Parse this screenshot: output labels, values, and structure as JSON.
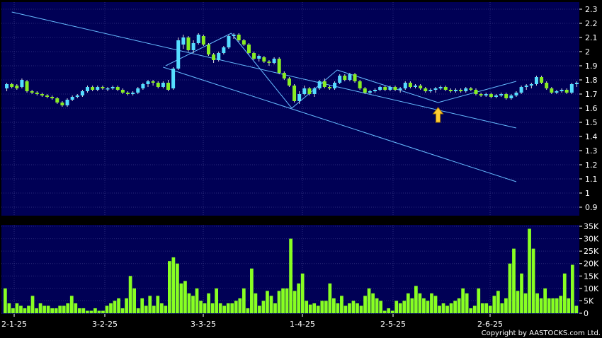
{
  "credit": "Copyright by AASTOCKS.com Ltd.",
  "colors": {
    "background": "#000000",
    "plot": "#000055",
    "grid": "#2a2a7a",
    "up_candle": "#55ddff",
    "down_candle": "#88ee22",
    "volume_bar": "#88ff22",
    "trendline": "#66bbff",
    "text": "#ffffff",
    "arrow": "#ffcc33"
  },
  "chart_data": [
    {
      "type": "candlestick",
      "title": "",
      "ylim": [
        0.85,
        2.35
      ],
      "y_ticks": [
        "2.3",
        "2.2",
        "2.1",
        "2",
        "1.9",
        "1.8",
        "1.7",
        "1.6",
        "1.5",
        "1.4",
        "1.3",
        "1.2",
        "1.1",
        "1",
        "0.9"
      ],
      "grid": true,
      "candles": [
        [
          1.74,
          1.78,
          1.72,
          1.77
        ],
        [
          1.77,
          1.78,
          1.74,
          1.75
        ],
        [
          1.76,
          1.77,
          1.73,
          1.74
        ],
        [
          1.75,
          1.81,
          1.74,
          1.8
        ],
        [
          1.79,
          1.8,
          1.71,
          1.72
        ],
        [
          1.72,
          1.73,
          1.7,
          1.71
        ],
        [
          1.71,
          1.72,
          1.69,
          1.7
        ],
        [
          1.7,
          1.71,
          1.68,
          1.69
        ],
        [
          1.69,
          1.7,
          1.67,
          1.68
        ],
        [
          1.68,
          1.69,
          1.66,
          1.67
        ],
        [
          1.67,
          1.68,
          1.63,
          1.64
        ],
        [
          1.64,
          1.65,
          1.61,
          1.62
        ],
        [
          1.62,
          1.67,
          1.61,
          1.66
        ],
        [
          1.66,
          1.69,
          1.65,
          1.68
        ],
        [
          1.68,
          1.7,
          1.67,
          1.69
        ],
        [
          1.69,
          1.73,
          1.68,
          1.72
        ],
        [
          1.72,
          1.76,
          1.71,
          1.75
        ],
        [
          1.75,
          1.76,
          1.72,
          1.73
        ],
        [
          1.73,
          1.76,
          1.72,
          1.75
        ],
        [
          1.75,
          1.76,
          1.73,
          1.74
        ],
        [
          1.74,
          1.75,
          1.72,
          1.74
        ],
        [
          1.74,
          1.76,
          1.73,
          1.75
        ],
        [
          1.75,
          1.76,
          1.72,
          1.73
        ],
        [
          1.73,
          1.74,
          1.7,
          1.71
        ],
        [
          1.71,
          1.72,
          1.69,
          1.7
        ],
        [
          1.7,
          1.72,
          1.69,
          1.71
        ],
        [
          1.71,
          1.75,
          1.7,
          1.74
        ],
        [
          1.74,
          1.78,
          1.73,
          1.77
        ],
        [
          1.77,
          1.8,
          1.75,
          1.79
        ],
        [
          1.79,
          1.8,
          1.76,
          1.78
        ],
        [
          1.78,
          1.79,
          1.74,
          1.75
        ],
        [
          1.75,
          1.79,
          1.74,
          1.78
        ],
        [
          1.78,
          1.8,
          1.72,
          1.73
        ],
        [
          1.74,
          1.89,
          1.73,
          1.88
        ],
        [
          1.88,
          2.1,
          1.87,
          2.08
        ],
        [
          2.05,
          2.12,
          2.02,
          2.1
        ],
        [
          2.1,
          2.11,
          2.0,
          2.01
        ],
        [
          2.01,
          2.08,
          1.99,
          2.06
        ],
        [
          2.06,
          2.13,
          2.05,
          2.12
        ],
        [
          2.11,
          2.12,
          2.04,
          2.05
        ],
        [
          2.05,
          2.06,
          1.97,
          1.98
        ],
        [
          1.98,
          1.99,
          1.92,
          1.94
        ],
        [
          1.94,
          2.0,
          1.93,
          1.99
        ],
        [
          1.99,
          2.04,
          1.98,
          2.03
        ],
        [
          2.03,
          2.12,
          2.02,
          2.11
        ],
        [
          2.11,
          2.13,
          2.09,
          2.12
        ],
        [
          2.12,
          2.13,
          2.07,
          2.08
        ],
        [
          2.08,
          2.09,
          2.04,
          2.05
        ],
        [
          2.05,
          2.06,
          1.98,
          1.99
        ],
        [
          1.99,
          2.0,
          1.94,
          1.95
        ],
        [
          1.95,
          1.98,
          1.93,
          1.97
        ],
        [
          1.96,
          1.97,
          1.92,
          1.93
        ],
        [
          1.93,
          1.94,
          1.9,
          1.92
        ],
        [
          1.92,
          1.96,
          1.91,
          1.95
        ],
        [
          1.95,
          1.96,
          1.84,
          1.85
        ],
        [
          1.85,
          1.86,
          1.8,
          1.81
        ],
        [
          1.81,
          1.82,
          1.75,
          1.76
        ],
        [
          1.76,
          1.77,
          1.64,
          1.65
        ],
        [
          1.65,
          1.72,
          1.63,
          1.7
        ],
        [
          1.7,
          1.76,
          1.69,
          1.74
        ],
        [
          1.74,
          1.75,
          1.69,
          1.7
        ],
        [
          1.7,
          1.75,
          1.68,
          1.74
        ],
        [
          1.74,
          1.8,
          1.73,
          1.79
        ],
        [
          1.79,
          1.81,
          1.74,
          1.75
        ],
        [
          1.75,
          1.76,
          1.73,
          1.74
        ],
        [
          1.74,
          1.79,
          1.73,
          1.78
        ],
        [
          1.78,
          1.84,
          1.77,
          1.83
        ],
        [
          1.83,
          1.84,
          1.79,
          1.8
        ],
        [
          1.8,
          1.85,
          1.79,
          1.84
        ],
        [
          1.84,
          1.85,
          1.78,
          1.79
        ],
        [
          1.79,
          1.8,
          1.73,
          1.74
        ],
        [
          1.74,
          1.75,
          1.7,
          1.71
        ],
        [
          1.71,
          1.73,
          1.7,
          1.72
        ],
        [
          1.72,
          1.74,
          1.71,
          1.73
        ],
        [
          1.73,
          1.76,
          1.72,
          1.75
        ],
        [
          1.75,
          1.76,
          1.72,
          1.73
        ],
        [
          1.73,
          1.76,
          1.72,
          1.75
        ],
        [
          1.75,
          1.76,
          1.72,
          1.73
        ],
        [
          1.73,
          1.75,
          1.71,
          1.74
        ],
        [
          1.74,
          1.79,
          1.73,
          1.78
        ],
        [
          1.78,
          1.79,
          1.74,
          1.75
        ],
        [
          1.75,
          1.77,
          1.74,
          1.76
        ],
        [
          1.76,
          1.77,
          1.73,
          1.74
        ],
        [
          1.74,
          1.75,
          1.71,
          1.72
        ],
        [
          1.72,
          1.74,
          1.71,
          1.73
        ],
        [
          1.73,
          1.75,
          1.71,
          1.74
        ],
        [
          1.74,
          1.76,
          1.73,
          1.75
        ],
        [
          1.75,
          1.76,
          1.72,
          1.73
        ],
        [
          1.73,
          1.74,
          1.71,
          1.72
        ],
        [
          1.72,
          1.74,
          1.71,
          1.73
        ],
        [
          1.73,
          1.74,
          1.71,
          1.72
        ],
        [
          1.72,
          1.75,
          1.71,
          1.74
        ],
        [
          1.74,
          1.75,
          1.72,
          1.73
        ],
        [
          1.73,
          1.74,
          1.69,
          1.7
        ],
        [
          1.7,
          1.71,
          1.68,
          1.69
        ],
        [
          1.69,
          1.71,
          1.68,
          1.7
        ],
        [
          1.7,
          1.71,
          1.67,
          1.68
        ],
        [
          1.68,
          1.7,
          1.67,
          1.69
        ],
        [
          1.69,
          1.71,
          1.68,
          1.7
        ],
        [
          1.7,
          1.71,
          1.66,
          1.67
        ],
        [
          1.67,
          1.7,
          1.66,
          1.69
        ],
        [
          1.69,
          1.72,
          1.68,
          1.71
        ],
        [
          1.71,
          1.76,
          1.7,
          1.75
        ],
        [
          1.75,
          1.77,
          1.73,
          1.76
        ],
        [
          1.76,
          1.78,
          1.74,
          1.77
        ],
        [
          1.77,
          1.83,
          1.76,
          1.82
        ],
        [
          1.82,
          1.83,
          1.77,
          1.78
        ],
        [
          1.78,
          1.79,
          1.73,
          1.74
        ],
        [
          1.74,
          1.75,
          1.7,
          1.71
        ],
        [
          1.71,
          1.73,
          1.7,
          1.72
        ],
        [
          1.72,
          1.74,
          1.71,
          1.73
        ],
        [
          1.73,
          1.74,
          1.7,
          1.71
        ],
        [
          1.71,
          1.78,
          1.7,
          1.77
        ],
        [
          1.77,
          1.79,
          1.75,
          1.78
        ]
      ],
      "annotations": {
        "trendlines": [
          [
            1.0,
            2.28,
            101.0,
            1.46
          ],
          [
            31.0,
            1.89,
            101.0,
            1.08
          ],
          [
            31.5,
            1.9,
            44.5,
            2.13
          ],
          [
            44.5,
            2.13,
            56.5,
            1.6
          ],
          [
            56.5,
            1.6,
            65.5,
            1.87
          ],
          [
            65.5,
            1.87,
            85.5,
            1.64
          ],
          [
            85.5,
            1.64,
            101.0,
            1.79
          ]
        ],
        "arrow_candle": 85.5
      }
    },
    {
      "type": "bar",
      "title": "",
      "ylim": [
        0,
        35000
      ],
      "y_ticks": [
        "35K",
        "30K",
        "25K",
        "20K",
        "15K",
        "10K",
        "5K",
        "0"
      ],
      "x_tick_labels": [
        "2-1-25",
        "3-2-25",
        "3-3-25",
        "1-4-25",
        "2-5-25",
        "2-6-25"
      ],
      "values": [
        10000,
        4000,
        2000,
        4000,
        3000,
        2000,
        3000,
        7000,
        2000,
        4000,
        3000,
        3000,
        2000,
        2000,
        3000,
        3000,
        4000,
        7000,
        4000,
        2000,
        2000,
        1000,
        1000,
        2000,
        1000,
        1000,
        3000,
        4000,
        5000,
        6000,
        2000,
        6000,
        15000,
        10000,
        2000,
        6000,
        3000,
        7000,
        3000,
        7000,
        4000,
        3000,
        21000,
        22500,
        20000,
        12000,
        13000,
        8000,
        7000,
        10000,
        5000,
        4000,
        8000,
        4000,
        10000,
        4000,
        3000,
        4000,
        4000,
        5000,
        6000,
        10000,
        2000,
        18000,
        8000,
        3000,
        5000,
        9000,
        7000,
        4000,
        9000,
        10000,
        10000,
        30000,
        9000,
        12000,
        16000,
        5000,
        3500,
        4000,
        3000,
        5000,
        5000,
        12000,
        6000,
        4000,
        7000,
        3000,
        4000,
        5000,
        4000,
        3000,
        7000,
        10000,
        8000,
        6000,
        5000,
        1000,
        2000,
        1000,
        5000,
        4000,
        5000,
        8000,
        6000,
        11000,
        8000,
        6000,
        5000,
        8000,
        7000,
        3000,
        4000,
        3000,
        4000,
        5000,
        6000,
        10000,
        8000,
        2000,
        3000,
        10000,
        4000,
        4000,
        3000,
        7000,
        9000,
        4000,
        6000,
        20000,
        26000,
        9000,
        16000,
        8000,
        34000,
        26000,
        8000,
        6000,
        10000,
        6000,
        6000,
        6000,
        7000,
        16000,
        6000,
        19500,
        3000
      ]
    }
  ]
}
